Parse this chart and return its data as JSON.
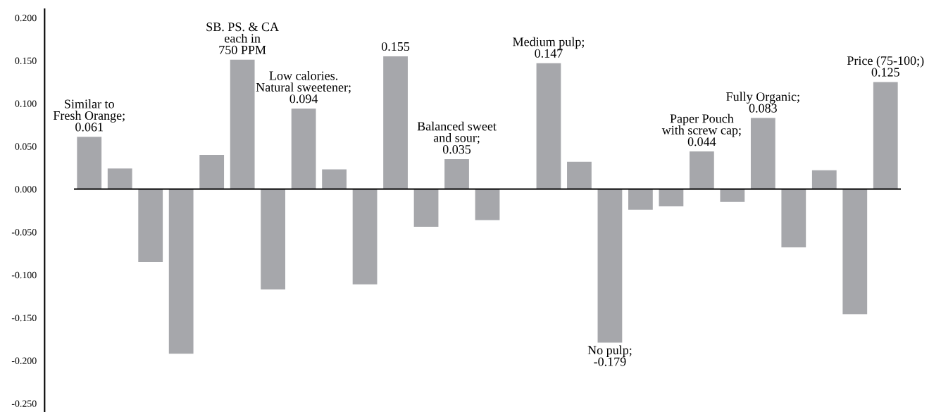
{
  "chart_data": {
    "type": "bar",
    "categories": [
      null,
      null,
      null,
      null,
      null,
      null,
      null,
      null,
      null,
      null,
      null,
      null,
      null,
      null,
      null,
      null,
      null,
      null,
      null,
      null,
      null,
      null,
      null,
      null,
      null,
      null,
      null
    ],
    "values": [
      0.061,
      0.024,
      -0.085,
      -0.192,
      0.04,
      0.151,
      -0.117,
      0.094,
      0.023,
      -0.111,
      0.155,
      -0.044,
      0.035,
      -0.036,
      null,
      0.147,
      0.032,
      -0.179,
      -0.024,
      -0.02,
      0.044,
      -0.015,
      0.083,
      -0.068,
      0.022,
      -0.146,
      0.125
    ],
    "value_labels": [
      "Similar to\nFresh Orange;\n0.061",
      null,
      null,
      null,
      null,
      "SB. PS. & CA\neach in\n750 PPM",
      null,
      "Low calories.\nNatural sweetener;\n0.094",
      null,
      null,
      "0.155",
      null,
      "Balanced sweet\nand sour;\n0.035",
      null,
      null,
      "Medium pulp;\n0.147",
      null,
      "No pulp;\n-0.179",
      null,
      null,
      "Paper Pouch\nwith screw cap;\n0.044",
      null,
      "Fully Organic;\n0.083",
      null,
      null,
      null,
      "Price (75-100;)\n0.125"
    ],
    "color": "#a6a7ab",
    "ylim": [
      -0.26,
      0.21
    ],
    "yticks": [
      {
        "value": -0.25,
        "label": "-0.250"
      },
      {
        "value": -0.2,
        "label": "-0.200"
      },
      {
        "value": -0.15,
        "label": "-0.150"
      },
      {
        "value": -0.1,
        "label": "-0.100"
      },
      {
        "value": -0.05,
        "label": "-0.050"
      },
      {
        "value": 0,
        "label": "0.000"
      },
      {
        "value": 0.05,
        "label": "0.050"
      },
      {
        "value": 0.1,
        "label": "0.100"
      },
      {
        "value": 0.15,
        "label": "0.150"
      },
      {
        "value": 0.2,
        "label": "0.200"
      }
    ],
    "ref_lines": [
      {
        "axis": "y",
        "value": 0,
        "color": "#000000",
        "line_style": "solid"
      }
    ],
    "grid": false,
    "legend": false
  }
}
